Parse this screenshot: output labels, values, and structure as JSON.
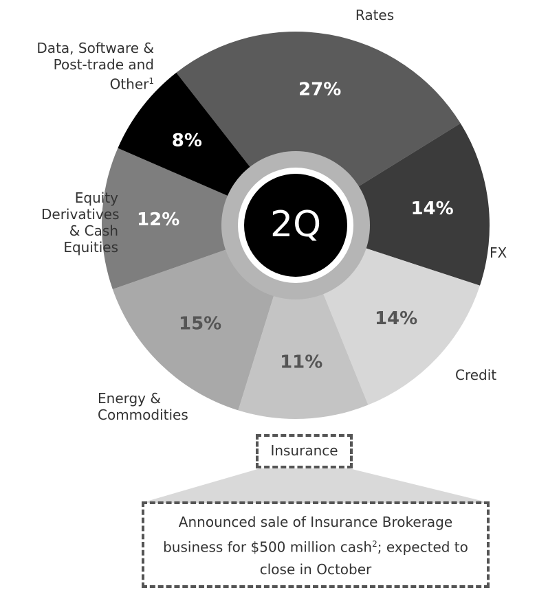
{
  "chart_data": {
    "type": "pie",
    "categories": [
      "Rates",
      "FX",
      "Credit",
      "Insurance",
      "Energy & Commodities",
      "Equity Derivatives & Cash Equities",
      "Data, Software & Post-trade and Other"
    ],
    "values": [
      27,
      14,
      14,
      11,
      15,
      12,
      8
    ],
    "value_labels": [
      "27%",
      "14%",
      "14%",
      "11%",
      "15%",
      "12%",
      "8%"
    ],
    "colors": [
      "#5b5b5b",
      "#3b3b3b",
      "#d7d7d7",
      "#c4c4c4",
      "#a9a9a9",
      "#7e7e7e",
      "#000000"
    ],
    "category_footnote": "1",
    "center_label": "2Q",
    "note": {
      "before": "Announced sale of Insurance Brokerage business for $500 million cash",
      "footnote": "2",
      "after": "; expected to close in October"
    }
  }
}
